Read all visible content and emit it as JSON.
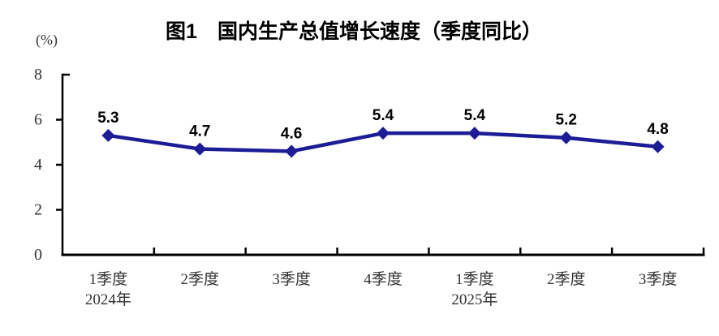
{
  "page": {
    "background": "#ffffff"
  },
  "chart_data": {
    "type": "line",
    "title": "图1　国内生产总值增长速度（季度同比）",
    "unit_label": "(%)",
    "categories": [
      "1季度",
      "2季度",
      "3季度",
      "4季度",
      "1季度",
      "2季度",
      "3季度"
    ],
    "year_labels": [
      {
        "text": "2024年",
        "category_index": 0
      },
      {
        "text": "2025年",
        "category_index": 4
      }
    ],
    "values": [
      5.3,
      4.7,
      4.6,
      5.4,
      5.4,
      5.2,
      4.8
    ],
    "data_labels": [
      "5.3",
      "4.7",
      "4.6",
      "5.4",
      "5.4",
      "5.2",
      "4.8"
    ],
    "ylim": [
      0,
      8
    ],
    "y_ticks": [
      0,
      2,
      4,
      6,
      8
    ],
    "grid": "off",
    "legend": "none",
    "marker": "diamond",
    "colors": {
      "line": "#1c1c96",
      "marker": "#1c1c96",
      "data_label": "#000000",
      "axis": "#000000",
      "tick_label": "#333333",
      "title": "#000000"
    }
  }
}
